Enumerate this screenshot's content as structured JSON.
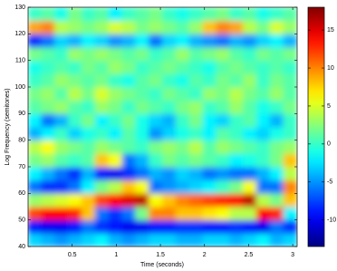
{
  "chart_data": {
    "type": "heatmap",
    "xlabel": "Time (seconds)",
    "ylabel": "Log Frequency (semitones)",
    "xlim": [
      0,
      3.05
    ],
    "xticks": [
      0.5,
      1,
      1.5,
      2,
      2.5,
      3
    ],
    "ylim": [
      40,
      130
    ],
    "yticks": [
      40,
      50,
      60,
      70,
      80,
      90,
      100,
      110,
      120,
      130
    ],
    "colormap": "jet",
    "clim": [
      -13.5,
      18
    ],
    "cticks": [
      -10,
      -5,
      0,
      5,
      10,
      15
    ],
    "z": [
      [
        -3,
        -4,
        -5,
        -4,
        -3,
        -2,
        -4,
        -5,
        -4,
        -3,
        -3,
        -4,
        -4,
        -3,
        -3,
        -4,
        -3,
        -2,
        -4,
        -3
      ],
      [
        -9,
        -10,
        -10,
        -9,
        -6,
        -8,
        -9,
        -10,
        -10,
        -9,
        -9,
        -8,
        -8,
        -9,
        -9,
        -8,
        -9,
        -10,
        -6,
        -8
      ],
      [
        12,
        14,
        14,
        13,
        8,
        -6,
        -8,
        -6,
        2,
        10,
        10,
        8,
        8,
        7,
        6,
        4,
        4,
        14,
        13,
        -2
      ],
      [
        3,
        4,
        5,
        6,
        8,
        12,
        14,
        15,
        16,
        6,
        8,
        10,
        11,
        12,
        13,
        14,
        16,
        4,
        2,
        8
      ],
      [
        -6,
        -8,
        -8,
        -6,
        -2,
        2,
        4,
        8,
        6,
        -6,
        -5,
        -4,
        -3,
        -2,
        0,
        2,
        6,
        -6,
        -6,
        10
      ],
      [
        -2,
        -4,
        -6,
        -8,
        -4,
        -9,
        -10,
        -8,
        -6,
        -4,
        -5,
        -3,
        -4,
        -6,
        -5,
        -6,
        -6,
        -4,
        -2,
        4
      ],
      [
        2,
        3,
        1,
        0,
        1,
        8,
        6,
        -6,
        -4,
        0,
        2,
        1,
        2,
        1,
        0,
        -2,
        -1,
        0,
        2,
        8
      ],
      [
        4,
        6,
        3,
        2,
        1,
        3,
        2,
        1,
        0,
        2,
        3,
        2,
        4,
        1,
        3,
        2,
        1,
        0,
        2,
        3
      ],
      [
        -4,
        -2,
        0,
        -3,
        -1,
        0,
        -2,
        1,
        -1,
        -5,
        -3,
        -1,
        0,
        -2,
        1,
        0,
        -2,
        -3,
        -1,
        0
      ],
      [
        -2,
        -6,
        -4,
        0,
        2,
        -2,
        0,
        2,
        -1,
        -3,
        -4,
        0,
        2,
        -2,
        -3,
        0,
        1,
        -2,
        -4,
        0
      ],
      [
        1,
        2,
        3,
        1,
        0,
        3,
        2,
        0,
        2,
        1,
        0,
        2,
        3,
        0,
        1,
        3,
        1,
        -1,
        0,
        2
      ],
      [
        2,
        3,
        1,
        4,
        2,
        5,
        3,
        2,
        1,
        0,
        2,
        1,
        0,
        3,
        2,
        4,
        2,
        1,
        3,
        1
      ],
      [
        0,
        1,
        3,
        2,
        1,
        2,
        0,
        -1,
        1,
        2,
        0,
        -1,
        1,
        0,
        2,
        1,
        3,
        0,
        2,
        1
      ],
      [
        -1,
        0,
        1,
        0,
        2,
        1,
        3,
        2,
        0,
        1,
        2,
        1,
        0,
        -1,
        1,
        2,
        1,
        0,
        1,
        0
      ],
      [
        2,
        1,
        0,
        3,
        2,
        3,
        2,
        1,
        2,
        0,
        1,
        3,
        1,
        2,
        3,
        1,
        0,
        2,
        1,
        2
      ],
      [
        -8,
        -6,
        -3,
        -4,
        -2,
        -3,
        -5,
        -4,
        -2,
        -6,
        -3,
        -2,
        -4,
        -5,
        -6,
        -4,
        -5,
        -3,
        -2,
        -4
      ],
      [
        9,
        10,
        4,
        3,
        2,
        3,
        5,
        4,
        2,
        3,
        2,
        1,
        3,
        8,
        10,
        9,
        4,
        2,
        5,
        3
      ],
      [
        0,
        1,
        -1,
        2,
        0,
        1,
        -2,
        0,
        1,
        2,
        0,
        -1,
        0,
        1,
        2,
        0,
        1,
        -1,
        0,
        1
      ]
    ]
  }
}
